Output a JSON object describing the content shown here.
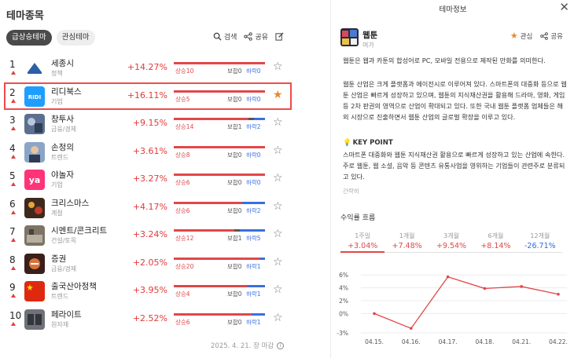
{
  "left": {
    "title": "테마종목",
    "tabs": [
      "급상승테마",
      "관심테마"
    ],
    "tools": {
      "search": "검색",
      "share": "공유"
    },
    "rows": [
      {
        "rank": "1",
        "name": "세종시",
        "category": "정책",
        "pct": "+14.27%",
        "up_label": "상승10",
        "flat_label": "보합0",
        "down_label": "하락0",
        "up": 10,
        "flat": 0,
        "down": 0,
        "starred": false,
        "thumb": "sejong-logo"
      },
      {
        "rank": "2",
        "name": "리디북스",
        "category": "기업",
        "pct": "+16.11%",
        "up_label": "상승5",
        "flat_label": "보합0",
        "down_label": "하락0",
        "up": 5,
        "flat": 0,
        "down": 0,
        "starred": true,
        "thumb": "ridi-logo",
        "thumb_text": "RIDI"
      },
      {
        "rank": "3",
        "name": "창투사",
        "category": "금융/경제",
        "pct": "+9.15%",
        "up_label": "상승14",
        "flat_label": "보합1",
        "down_label": "하락2",
        "up": 14,
        "flat": 1,
        "down": 2,
        "starred": false,
        "thumb": "finance-photo"
      },
      {
        "rank": "4",
        "name": "손정의",
        "category": "트렌드",
        "pct": "+3.61%",
        "up_label": "상승8",
        "flat_label": "보합0",
        "down_label": "하락0",
        "up": 8,
        "flat": 0,
        "down": 0,
        "starred": false,
        "thumb": "person-photo"
      },
      {
        "rank": "5",
        "name": "야놀자",
        "category": "기업",
        "pct": "+3.27%",
        "up_label": "상승6",
        "flat_label": "보합0",
        "down_label": "하락0",
        "up": 6,
        "flat": 0,
        "down": 0,
        "starred": false,
        "thumb": "yanolja-logo",
        "thumb_text": "ya"
      },
      {
        "rank": "6",
        "name": "크리스마스",
        "category": "계절",
        "pct": "+4.17%",
        "up_label": "상승6",
        "flat_label": "보합0",
        "down_label": "하락2",
        "up": 6,
        "flat": 0,
        "down": 2,
        "starred": false,
        "thumb": "christmas-photo"
      },
      {
        "rank": "7",
        "name": "시멘트/콘크리트",
        "category": "건설/토목",
        "pct": "+3.24%",
        "up_label": "상승12",
        "flat_label": "보합1",
        "down_label": "하락5",
        "up": 12,
        "flat": 1,
        "down": 5,
        "starred": false,
        "thumb": "cement-photo"
      },
      {
        "rank": "8",
        "name": "증권",
        "category": "금융/경제",
        "pct": "+2.05%",
        "up_label": "상승20",
        "flat_label": "보합0",
        "down_label": "하락1",
        "up": 20,
        "flat": 0,
        "down": 1,
        "starred": false,
        "thumb": "securities-photo"
      },
      {
        "rank": "9",
        "name": "출국산아정책",
        "category": "트렌드",
        "pct": "+3.95%",
        "up_label": "상승4",
        "flat_label": "보합0",
        "down_label": "하락1",
        "up": 4,
        "flat": 0,
        "down": 1,
        "starred": false,
        "thumb": "china-flag"
      },
      {
        "rank": "10",
        "name": "페라이트",
        "category": "원자재",
        "pct": "+2.52%",
        "up_label": "상승6",
        "flat_label": "보합0",
        "down_label": "하락1",
        "up": 6,
        "flat": 0,
        "down": 1,
        "starred": false,
        "thumb": "ferrite-photo"
      }
    ],
    "footnote": "2025. 4. 21. 장 마감"
  },
  "right": {
    "header": "테마정보",
    "theme_name": "웹툰",
    "theme_category": "여가",
    "actions": {
      "favorite": "관심",
      "share": "공유"
    },
    "desc1": "웹툰은 웹과 카툰의 합성어로 PC, 모바일 전용으로 제작된 만화를 의미한다.",
    "desc2": "웹툰 산업은 크게 플랫폼과 에이전시로 이루어져 있다. 스마트폰의 대중화 등으로 웹툰 산업은 빠르게 성장하고 있으며, 웹툰의 지식재산권을 활용해 드라마, 영화, 게임 등 2차 판권의 영역으로 산업이 확대되고 있다. 또한 국내 웹툰 플랫폼 업체들은 해외 시장으로 진출하면서 웹툰 산업의 글로벌 확장을 이루고 있다.",
    "keypoint_title": "KEY POINT",
    "keypoint_text": "스마트폰 대중화와 웹툰 지식재산권 활용으로 빠르게 성장하고 있는 산업에 속한다. 주로 웹툰, 웹 소설, 음악 등 콘텐츠 유통사업을 영위하는 기업들이 관련주로 분류되고 있다.",
    "brief": "간략히",
    "returns_title": "수익률 흐름",
    "periods": [
      {
        "label": "1주일",
        "value": "+3.04%",
        "dir": "up",
        "selected": true
      },
      {
        "label": "1개월",
        "value": "+7.48%",
        "dir": "up",
        "selected": false
      },
      {
        "label": "3개월",
        "value": "+9.54%",
        "dir": "up",
        "selected": false
      },
      {
        "label": "6개월",
        "value": "+8.14%",
        "dir": "up",
        "selected": false
      },
      {
        "label": "12개월",
        "value": "-26.71%",
        "dir": "down",
        "selected": false
      }
    ]
  },
  "colors": {
    "up": "#e0474a",
    "down": "#2e6be0",
    "flat": "#555555",
    "highlight": "#f04b4b",
    "star_on": "#e8892c"
  },
  "chart_data": {
    "type": "line",
    "x": [
      "04.15.",
      "04.16.",
      "04.17.",
      "04.18.",
      "04.21.",
      "04.22."
    ],
    "values": [
      0,
      -2.3,
      5.7,
      3.9,
      4.2,
      3.0
    ],
    "yticks": [
      "6%",
      "4%",
      "2%",
      "0%",
      "-3%"
    ],
    "ylim": [
      -3,
      7
    ],
    "color": "#e0474a",
    "grid": true
  }
}
